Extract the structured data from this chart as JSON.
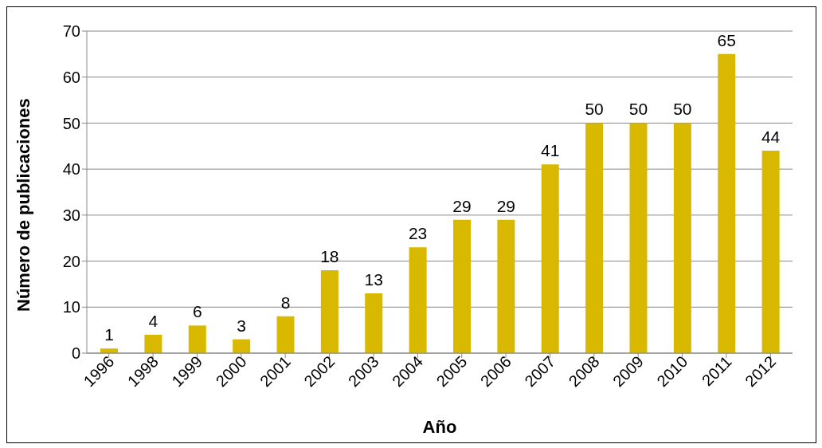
{
  "chart_data": {
    "type": "bar",
    "xlabel": "Año",
    "ylabel": "Número de publicaciones",
    "categories": [
      "1996",
      "1998",
      "1999",
      "2000",
      "2001",
      "2002",
      "2003",
      "2004",
      "2005",
      "2006",
      "2007",
      "2008",
      "2009",
      "2010",
      "2011",
      "2012"
    ],
    "values": [
      1,
      4,
      6,
      3,
      8,
      18,
      13,
      23,
      29,
      29,
      41,
      50,
      50,
      50,
      65,
      44
    ],
    "color": "#d9b800",
    "ylim": [
      0,
      70
    ],
    "yticks": [
      0,
      10,
      20,
      30,
      40,
      50,
      60,
      70
    ],
    "grid": "y",
    "data_labels": true
  }
}
